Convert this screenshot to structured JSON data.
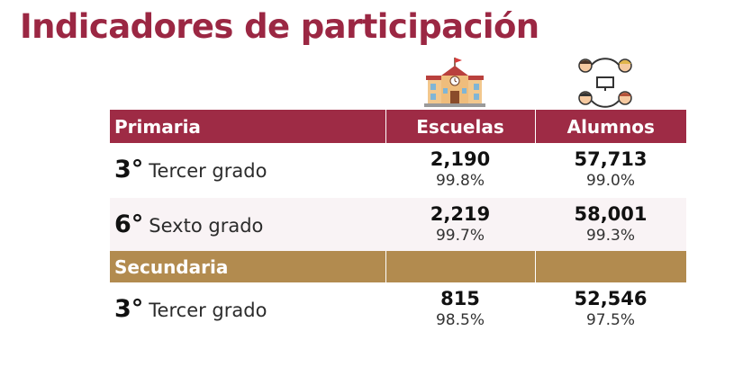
{
  "title": "Indicadores de participación",
  "icons": {
    "schools": "school-building-icon",
    "students": "students-group-icon"
  },
  "colors": {
    "title": "#9b2743",
    "primaria_header": "#9e2b45",
    "secundaria_header": "#b28b4f",
    "shaded_row": "#f9f3f5"
  },
  "columns": {
    "escuelas": "Escuelas",
    "alumnos": "Alumnos"
  },
  "primaria": {
    "label": "Primaria",
    "rows": [
      {
        "grade": "3°",
        "name": "Tercer grado",
        "escuelas": "2,190",
        "escuelas_pct": "99.8%",
        "alumnos": "57,713",
        "alumnos_pct": "99.0%"
      },
      {
        "grade": "6°",
        "name": "Sexto grado",
        "escuelas": "2,219",
        "escuelas_pct": "99.7%",
        "alumnos": "58,001",
        "alumnos_pct": "99.3%"
      }
    ]
  },
  "secundaria": {
    "label": "Secundaria",
    "rows": [
      {
        "grade": "3°",
        "name": "Tercer grado",
        "escuelas": "815",
        "escuelas_pct": "98.5%",
        "alumnos": "52,546",
        "alumnos_pct": "97.5%"
      }
    ]
  }
}
